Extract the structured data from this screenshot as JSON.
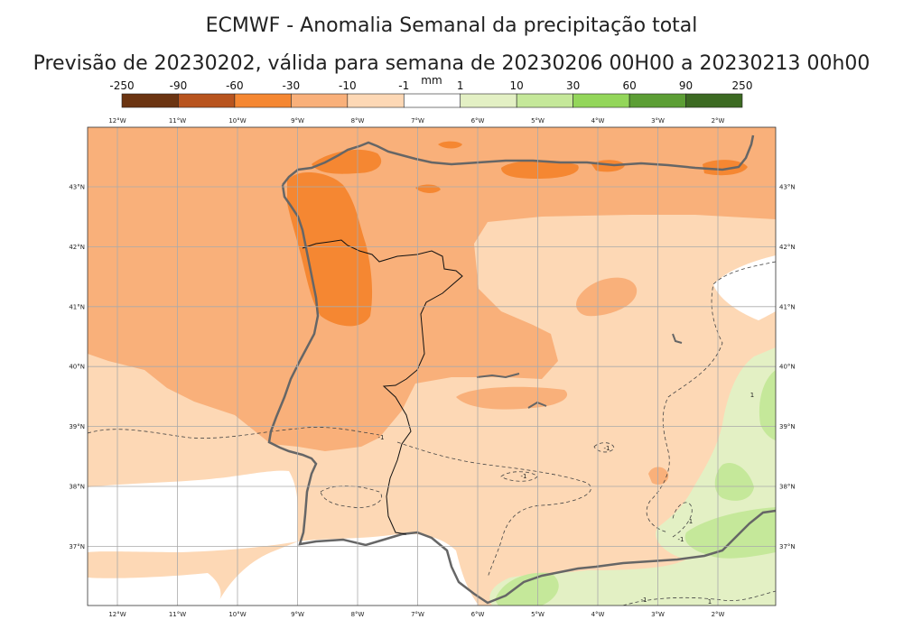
{
  "title": "ECMWF - Anomalia Semanal da precipitação total",
  "subtitle": "Previsão de 20230202, válida para semana de 20230206 00H00 a 20230213 00h00",
  "colorbar": {
    "unit": "mm",
    "boundaries": [
      "-250",
      "-90",
      "-60",
      "-30",
      "-10",
      "-1",
      "1",
      "10",
      "30",
      "60",
      "90",
      "250"
    ],
    "colors": [
      "#6b3411",
      "#b8541e",
      "#f58732",
      "#f9b07a",
      "#fdd8b5",
      "#ffffff",
      "#e3f0c4",
      "#c5e89a",
      "#93d65a",
      "#5c9e35",
      "#3c6a22"
    ]
  },
  "axes": {
    "lon_labels": [
      "12°W",
      "11°W",
      "10°W",
      "9°W",
      "8°W",
      "7°W",
      "6°W",
      "5°W",
      "4°W",
      "3°W",
      "2°W"
    ],
    "lat_labels": [
      "43°N",
      "42°N",
      "41°N",
      "40°N",
      "39°N",
      "38°N",
      "37°N"
    ]
  },
  "contour_labels": [
    "-1",
    "-1",
    "-1",
    "1",
    "1",
    "-1",
    "-1",
    "1"
  ]
}
